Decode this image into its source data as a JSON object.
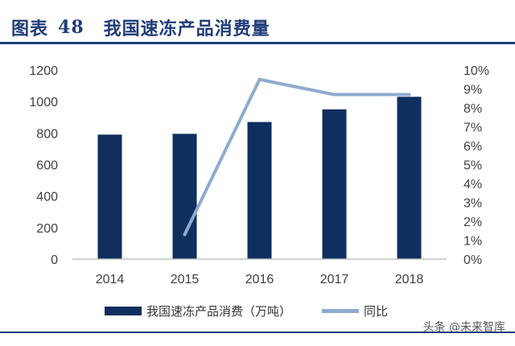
{
  "figure": {
    "label": "图表",
    "number": "48",
    "title": "我国速冻产品消费量"
  },
  "watermark": "头条 @未来智库",
  "colors": {
    "title": "#1f3d7a",
    "bar": "#0f2f5f",
    "line": "#8eabd0",
    "axis": "#bfbfbf"
  },
  "chart_data": {
    "type": "bar",
    "categories": [
      "2014",
      "2015",
      "2016",
      "2017",
      "2018"
    ],
    "series": [
      {
        "name": "我国速冻产品消费（万吨）",
        "type": "bar",
        "axis": "left",
        "values": [
          790,
          795,
          870,
          950,
          1030
        ]
      },
      {
        "name": "同比",
        "type": "line",
        "axis": "right",
        "values": [
          null,
          1.3,
          9.5,
          8.7,
          8.7
        ]
      }
    ],
    "y_left": {
      "range": [
        0,
        1200
      ],
      "ticks": [
        "0",
        "200",
        "400",
        "600",
        "800",
        "1000",
        "1200"
      ]
    },
    "y_right": {
      "range": [
        0,
        10
      ],
      "ticks": [
        "0%",
        "1%",
        "2%",
        "3%",
        "4%",
        "5%",
        "6%",
        "7%",
        "8%",
        "9%",
        "10%"
      ]
    },
    "grid": false,
    "legend": "bottom"
  }
}
